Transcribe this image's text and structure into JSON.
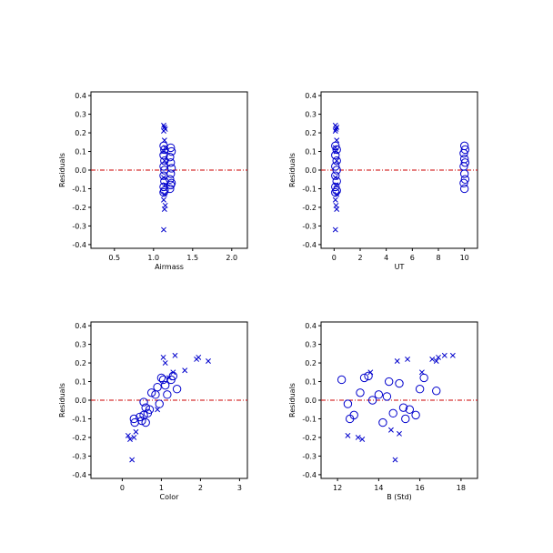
{
  "colors": {
    "markers": "#0000cc",
    "zero_line": "#cc0000",
    "axes": "#000000"
  },
  "chart_data": [
    {
      "type": "scatter",
      "xlabel": "Airmass",
      "ylabel": "Residuals",
      "xlim": [
        0.2,
        2.2
      ],
      "ylim": [
        -0.42,
        0.42
      ],
      "xticks": [
        0.5,
        1.0,
        1.5,
        2.0
      ],
      "xtick_labels": [
        "0.5",
        "1.0",
        "1.5",
        "2.0"
      ],
      "yticks": [
        -0.4,
        -0.3,
        -0.2,
        -0.1,
        0.0,
        0.1,
        0.2,
        0.3,
        0.4
      ],
      "ytick_labels": [
        "-0.4",
        "-0.3",
        "-0.2",
        "-0.1",
        "0.0",
        "0.1",
        "0.2",
        "0.3",
        "0.4"
      ],
      "reference_line_y": 0.0,
      "series": [
        {
          "marker": "cross",
          "points": [
            [
              1.13,
              0.24
            ],
            [
              1.14,
              0.23
            ],
            [
              1.15,
              0.22
            ],
            [
              1.13,
              0.21
            ],
            [
              1.14,
              0.16
            ],
            [
              1.15,
              0.12
            ],
            [
              1.13,
              0.1
            ],
            [
              1.14,
              0.05
            ],
            [
              1.13,
              -0.04
            ],
            [
              1.15,
              -0.08
            ],
            [
              1.14,
              -0.13
            ],
            [
              1.13,
              -0.16
            ],
            [
              1.15,
              -0.19
            ],
            [
              1.14,
              -0.21
            ],
            [
              1.13,
              -0.32
            ]
          ]
        },
        {
          "marker": "circle",
          "points": [
            [
              1.13,
              0.13
            ],
            [
              1.14,
              0.11
            ],
            [
              1.22,
              0.12
            ],
            [
              1.23,
              0.1
            ],
            [
              1.13,
              0.08
            ],
            [
              1.21,
              0.07
            ],
            [
              1.14,
              0.05
            ],
            [
              1.22,
              0.04
            ],
            [
              1.13,
              0.02
            ],
            [
              1.23,
              0.01
            ],
            [
              1.14,
              0.0
            ],
            [
              1.22,
              -0.02
            ],
            [
              1.13,
              -0.03
            ],
            [
              1.21,
              -0.05
            ],
            [
              1.14,
              -0.06
            ],
            [
              1.23,
              -0.07
            ],
            [
              1.13,
              -0.09
            ],
            [
              1.22,
              -0.08
            ],
            [
              1.14,
              -0.11
            ],
            [
              1.21,
              -0.1
            ],
            [
              1.13,
              -0.12
            ]
          ]
        }
      ]
    },
    {
      "type": "scatter",
      "xlabel": "UT",
      "ylabel": "Residuals",
      "xlim": [
        -1,
        11
      ],
      "ylim": [
        -0.42,
        0.42
      ],
      "xticks": [
        0,
        2,
        4,
        6,
        8,
        10
      ],
      "xtick_labels": [
        "0",
        "2",
        "4",
        "6",
        "8",
        "10"
      ],
      "yticks": [
        -0.4,
        -0.3,
        -0.2,
        -0.1,
        0.0,
        0.1,
        0.2,
        0.3,
        0.4
      ],
      "ytick_labels": [
        "-0.4",
        "-0.3",
        "-0.2",
        "-0.1",
        "0.0",
        "0.1",
        "0.2",
        "0.3",
        "0.4"
      ],
      "reference_line_y": 0.0,
      "series": [
        {
          "marker": "cross",
          "points": [
            [
              0.1,
              0.24
            ],
            [
              0.2,
              0.23
            ],
            [
              0.15,
              0.22
            ],
            [
              0.1,
              0.21
            ],
            [
              0.2,
              0.16
            ],
            [
              0.1,
              0.12
            ],
            [
              0.15,
              0.1
            ],
            [
              0.2,
              0.05
            ],
            [
              0.1,
              -0.04
            ],
            [
              0.15,
              -0.08
            ],
            [
              0.2,
              -0.13
            ],
            [
              0.1,
              -0.16
            ],
            [
              0.15,
              -0.19
            ],
            [
              0.2,
              -0.21
            ],
            [
              0.1,
              -0.32
            ]
          ]
        },
        {
          "marker": "circle",
          "points": [
            [
              0.1,
              0.13
            ],
            [
              0.2,
              0.11
            ],
            [
              0.1,
              0.08
            ],
            [
              0.2,
              0.05
            ],
            [
              0.1,
              0.02
            ],
            [
              0.2,
              0.0
            ],
            [
              0.1,
              -0.03
            ],
            [
              0.2,
              -0.06
            ],
            [
              0.1,
              -0.09
            ],
            [
              0.2,
              -0.11
            ],
            [
              0.1,
              -0.12
            ],
            [
              10.0,
              0.13
            ],
            [
              10.05,
              0.11
            ],
            [
              9.95,
              0.09
            ],
            [
              10.0,
              0.06
            ],
            [
              10.05,
              0.04
            ],
            [
              9.95,
              0.02
            ],
            [
              10.0,
              -0.02
            ],
            [
              10.05,
              -0.05
            ],
            [
              9.95,
              -0.07
            ],
            [
              10.0,
              -0.1
            ]
          ]
        }
      ]
    },
    {
      "type": "scatter",
      "xlabel": "Color",
      "ylabel": "Residuals",
      "xlim": [
        -0.8,
        3.2
      ],
      "ylim": [
        -0.42,
        0.42
      ],
      "xticks": [
        0,
        1,
        2,
        3
      ],
      "xtick_labels": [
        "0",
        "1",
        "2",
        "3"
      ],
      "yticks": [
        -0.4,
        -0.3,
        -0.2,
        -0.1,
        0.0,
        0.1,
        0.2,
        0.3,
        0.4
      ],
      "ytick_labels": [
        "-0.4",
        "-0.3",
        "-0.2",
        "-0.1",
        "0.0",
        "0.1",
        "0.2",
        "0.3",
        "0.4"
      ],
      "reference_line_y": 0.0,
      "series": [
        {
          "marker": "cross",
          "points": [
            [
              0.15,
              -0.19
            ],
            [
              0.2,
              -0.21
            ],
            [
              0.3,
              -0.2
            ],
            [
              0.25,
              -0.32
            ],
            [
              0.35,
              -0.17
            ],
            [
              0.9,
              -0.05
            ],
            [
              1.05,
              0.23
            ],
            [
              1.1,
              0.2
            ],
            [
              1.35,
              0.24
            ],
            [
              1.3,
              0.15
            ],
            [
              1.6,
              0.16
            ],
            [
              1.9,
              0.22
            ],
            [
              1.95,
              0.23
            ],
            [
              2.2,
              0.21
            ],
            [
              1.2,
              0.12
            ]
          ]
        },
        {
          "marker": "circle",
          "points": [
            [
              0.3,
              -0.1
            ],
            [
              0.32,
              -0.12
            ],
            [
              0.45,
              -0.09
            ],
            [
              0.5,
              -0.11
            ],
            [
              0.55,
              -0.08
            ],
            [
              0.6,
              -0.12
            ],
            [
              0.55,
              -0.01
            ],
            [
              0.6,
              -0.04
            ],
            [
              0.65,
              -0.07
            ],
            [
              0.7,
              -0.05
            ],
            [
              0.75,
              0.04
            ],
            [
              0.85,
              0.03
            ],
            [
              0.9,
              0.07
            ],
            [
              0.95,
              -0.02
            ],
            [
              1.0,
              0.12
            ],
            [
              1.05,
              0.11
            ],
            [
              1.1,
              0.08
            ],
            [
              1.15,
              0.03
            ],
            [
              1.25,
              0.11
            ],
            [
              1.3,
              0.13
            ],
            [
              1.4,
              0.06
            ]
          ]
        }
      ]
    },
    {
      "type": "scatter",
      "xlabel": "B (Std)",
      "ylabel": "Residuals",
      "xlim": [
        11.2,
        18.8
      ],
      "ylim": [
        -0.42,
        0.42
      ],
      "xticks": [
        12,
        14,
        16,
        18
      ],
      "xtick_labels": [
        "12",
        "14",
        "16",
        "18"
      ],
      "yticks": [
        -0.4,
        -0.3,
        -0.2,
        -0.1,
        0.0,
        0.1,
        0.2,
        0.3,
        0.4
      ],
      "ytick_labels": [
        "-0.4",
        "-0.3",
        "-0.2",
        "-0.1",
        "0.0",
        "0.1",
        "0.2",
        "0.3",
        "0.4"
      ],
      "reference_line_y": 0.0,
      "series": [
        {
          "marker": "cross",
          "points": [
            [
              12.5,
              -0.19
            ],
            [
              13.0,
              -0.2
            ],
            [
              13.2,
              -0.21
            ],
            [
              13.6,
              0.15
            ],
            [
              14.6,
              -0.16
            ],
            [
              14.9,
              0.21
            ],
            [
              15.4,
              0.22
            ],
            [
              15.0,
              -0.18
            ],
            [
              14.8,
              -0.32
            ],
            [
              16.1,
              0.15
            ],
            [
              16.6,
              0.22
            ],
            [
              16.9,
              0.23
            ],
            [
              17.2,
              0.24
            ],
            [
              17.6,
              0.24
            ],
            [
              16.8,
              0.21
            ]
          ]
        },
        {
          "marker": "circle",
          "points": [
            [
              12.2,
              0.11
            ],
            [
              12.5,
              -0.02
            ],
            [
              12.6,
              -0.1
            ],
            [
              12.8,
              -0.08
            ],
            [
              13.1,
              0.04
            ],
            [
              13.3,
              0.12
            ],
            [
              13.5,
              0.13
            ],
            [
              13.7,
              0.0
            ],
            [
              14.0,
              0.03
            ],
            [
              14.2,
              -0.12
            ],
            [
              14.4,
              0.02
            ],
            [
              14.5,
              0.1
            ],
            [
              14.7,
              -0.07
            ],
            [
              15.0,
              0.09
            ],
            [
              15.2,
              -0.04
            ],
            [
              15.3,
              -0.1
            ],
            [
              15.5,
              -0.05
            ],
            [
              15.8,
              -0.08
            ],
            [
              16.0,
              0.06
            ],
            [
              16.2,
              0.12
            ],
            [
              16.8,
              0.05
            ]
          ]
        }
      ]
    }
  ]
}
